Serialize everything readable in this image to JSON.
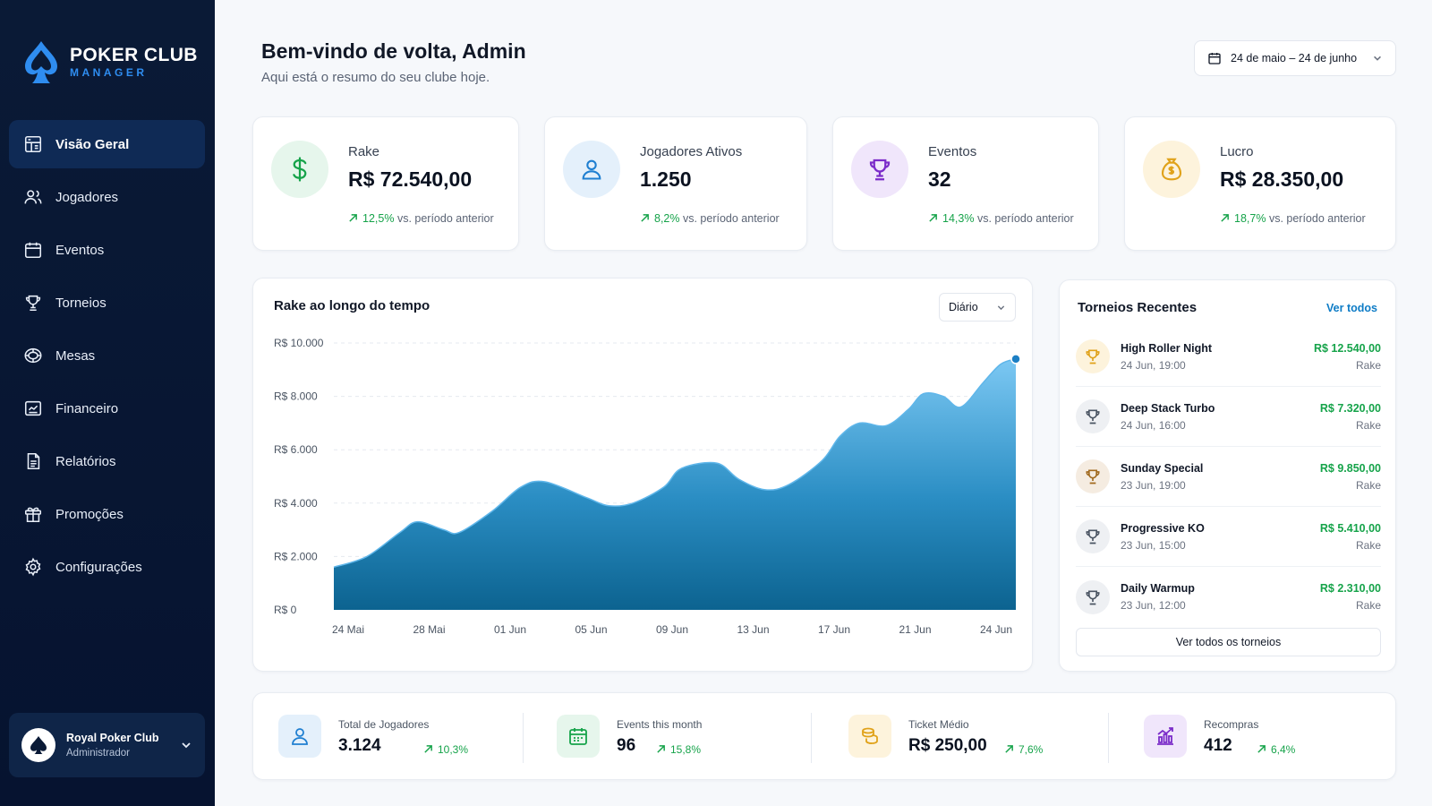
{
  "brand": {
    "title": "POKER CLUB",
    "subtitle": "MANAGER",
    "icon": "spade-logo-icon"
  },
  "nav": [
    {
      "label": "Visão Geral",
      "icon": "dashboard-icon",
      "active": true
    },
    {
      "label": "Jogadores",
      "icon": "users-icon"
    },
    {
      "label": "Eventos",
      "icon": "calendar-icon"
    },
    {
      "label": "Torneios",
      "icon": "trophy-icon"
    },
    {
      "label": "Mesas",
      "icon": "table-icon"
    },
    {
      "label": "Financeiro",
      "icon": "finance-icon"
    },
    {
      "label": "Relatórios",
      "icon": "report-icon"
    },
    {
      "label": "Promoções",
      "icon": "gift-icon"
    },
    {
      "label": "Configurações",
      "icon": "gear-icon"
    }
  ],
  "club": {
    "name": "Royal Poker Club",
    "role": "Administrador"
  },
  "header": {
    "title": "Bem-vindo de volta, Admin",
    "subtitle": "Aqui está o resumo do seu clube hoje.",
    "date_range": "24 de maio – 24 de junho"
  },
  "kpis": [
    {
      "label": "Rake",
      "value": "R$ 72.540,00",
      "delta": "12,5%",
      "delta_text": "vs. período anterior",
      "icon": "dollar-icon",
      "color": "#16a34a",
      "bg": "#e6f6ec"
    },
    {
      "label": "Jogadores Ativos",
      "value": "1.250",
      "delta": "8,2%",
      "delta_text": "vs. período anterior",
      "icon": "user-icon",
      "color": "#1f7fd1",
      "bg": "#e4f0fb"
    },
    {
      "label": "Eventos",
      "value": "32",
      "delta": "14,3%",
      "delta_text": "vs. período anterior",
      "icon": "trophy-icon",
      "color": "#7b2cc9",
      "bg": "#f0e6fb"
    },
    {
      "label": "Lucro",
      "value": "R$ 28.350,00",
      "delta": "18,7%",
      "delta_text": "vs. período anterior",
      "icon": "money-bag-icon",
      "color": "#e0a21a",
      "bg": "#fdf3dc"
    }
  ],
  "chart": {
    "title": "Rake ao longo do tempo",
    "period": "Diário"
  },
  "chart_data": {
    "type": "area",
    "title": "Rake ao longo do tempo",
    "x_ticks": [
      "24 Mai",
      "28 Mai",
      "01 Jun",
      "05 Jun",
      "09 Jun",
      "13 Jun",
      "17 Jun",
      "21 Jun",
      "24 Jun"
    ],
    "y_ticks": [
      "R$ 10.000",
      "R$ 8.000",
      "R$ 6.000",
      "R$ 4.000",
      "R$ 2.000",
      "R$ 0"
    ],
    "ylim": [
      0,
      10000
    ],
    "x_index_range": [
      0,
      31
    ],
    "series": [
      {
        "points": [
          [
            0,
            1600
          ],
          [
            1.5,
            2000
          ],
          [
            3,
            2900
          ],
          [
            3.8,
            3300
          ],
          [
            5,
            3000
          ],
          [
            5.7,
            2900
          ],
          [
            7.2,
            3700
          ],
          [
            8.5,
            4600
          ],
          [
            9.6,
            4800
          ],
          [
            11.5,
            4200
          ],
          [
            12.5,
            3900
          ],
          [
            13.6,
            4000
          ],
          [
            15,
            4600
          ],
          [
            15.8,
            5300
          ],
          [
            17.4,
            5500
          ],
          [
            18.4,
            4900
          ],
          [
            19.6,
            4500
          ],
          [
            20.7,
            4700
          ],
          [
            22.2,
            5600
          ],
          [
            23,
            6500
          ],
          [
            23.9,
            7000
          ],
          [
            25.1,
            6900
          ],
          [
            26.1,
            7500
          ],
          [
            26.8,
            8100
          ],
          [
            27.7,
            8000
          ],
          [
            28.5,
            7600
          ],
          [
            29.5,
            8500
          ],
          [
            30.3,
            9200
          ],
          [
            31,
            9400
          ]
        ]
      }
    ],
    "grid": true,
    "legend": "none"
  },
  "tournaments": {
    "title": "Torneios Recentes",
    "link": "Ver todos",
    "button": "Ver todos os torneios",
    "items": [
      {
        "name": "High Roller Night",
        "date": "24 Jun, 19:00",
        "amount": "R$ 12.540,00",
        "tag": "Rake",
        "icon": "trophy-gold-icon",
        "color": "#e0a21a",
        "bg": "#fdf3dc"
      },
      {
        "name": "Deep Stack Turbo",
        "date": "24 Jun, 16:00",
        "amount": "R$ 7.320,00",
        "tag": "Rake",
        "icon": "trophy-silver-icon",
        "color": "#4b5563",
        "bg": "#eef0f3"
      },
      {
        "name": "Sunday Special",
        "date": "23 Jun, 19:00",
        "amount": "R$ 9.850,00",
        "tag": "Rake",
        "icon": "trophy-bronze-icon",
        "color": "#a16a1f",
        "bg": "#f5ece1"
      },
      {
        "name": "Progressive KO",
        "date": "23 Jun, 15:00",
        "amount": "R$ 5.410,00",
        "tag": "Rake",
        "icon": "trophy-silver-icon",
        "color": "#4b5563",
        "bg": "#eef0f3"
      },
      {
        "name": "Daily Warmup",
        "date": "23 Jun, 12:00",
        "amount": "R$ 2.310,00",
        "tag": "Rake",
        "icon": "trophy-silver-icon",
        "color": "#4b5563",
        "bg": "#eef0f3"
      }
    ]
  },
  "stats": [
    {
      "label": "Total de Jogadores",
      "value": "3.124",
      "delta": "10,3%",
      "icon": "user-icon",
      "color": "#1f7fd1",
      "bg": "#e4f0fb"
    },
    {
      "label": "Events this month",
      "value": "96",
      "delta": "15,8%",
      "icon": "calendar-icon",
      "color": "#16a34a",
      "bg": "#e6f6ec"
    },
    {
      "label": "Ticket Médio",
      "value": "R$ 250,00",
      "delta": "7,6%",
      "icon": "coins-icon",
      "color": "#e0a21a",
      "bg": "#fdf3dc"
    },
    {
      "label": "Recompras",
      "value": "412",
      "delta": "6,4%",
      "icon": "chart-bars-icon",
      "color": "#7b2cc9",
      "bg": "#f0e6fb"
    }
  ]
}
